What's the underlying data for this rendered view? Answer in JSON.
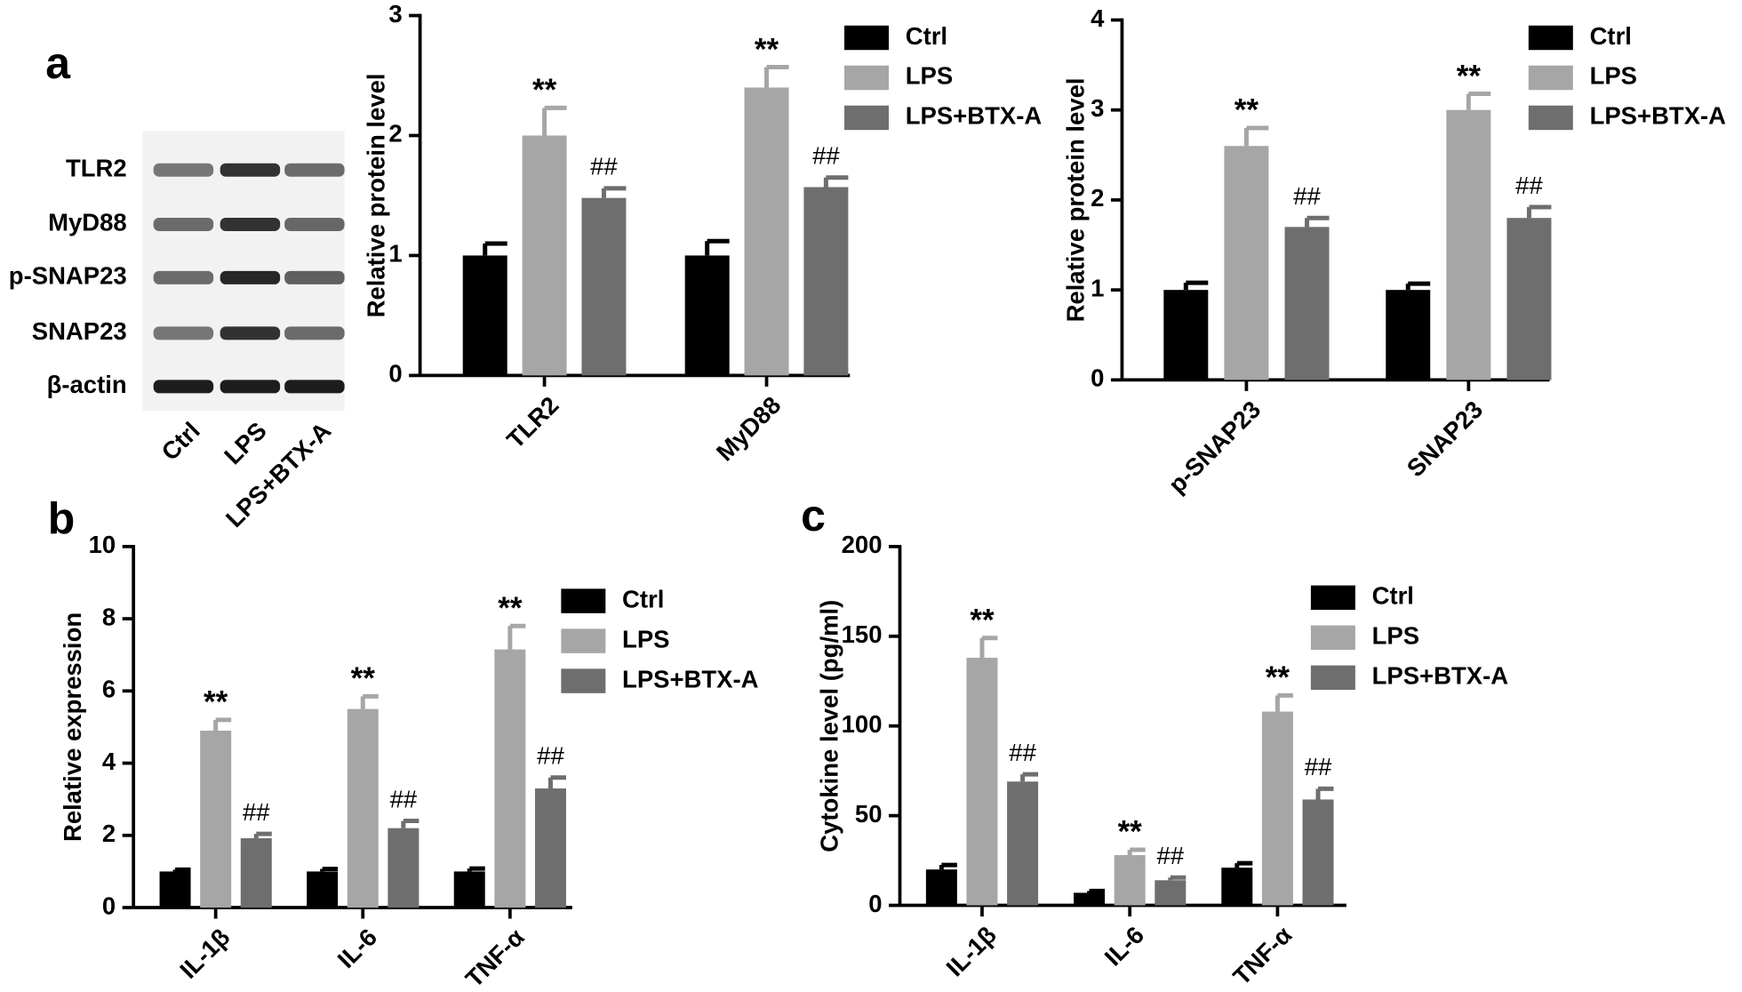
{
  "panel_labels": [
    "a",
    "b",
    "c"
  ],
  "blot": {
    "rows": [
      "TLR2",
      "MyD88",
      "p-SNAP23",
      "SNAP23",
      "β-actin"
    ],
    "lanes": [
      "Ctrl",
      "LPS",
      "LPS+BTX-A"
    ]
  },
  "chart_data": [
    {
      "type": "bar",
      "y_label": "Relative protein level",
      "categories": [
        "TLR2",
        "MyD88"
      ],
      "ylim": [
        0,
        3
      ],
      "yticks": [
        0,
        1,
        2,
        3
      ],
      "series": [
        {
          "name": "Ctrl",
          "color": "#000000",
          "values": [
            1.0,
            1.0
          ],
          "errors": [
            0.1,
            0.12
          ]
        },
        {
          "name": "LPS",
          "color": "#a6a6a6",
          "values": [
            2.0,
            2.4
          ],
          "errors": [
            0.23,
            0.17
          ],
          "annotations": [
            "**",
            "**"
          ]
        },
        {
          "name": "LPS+BTX-A",
          "color": "#6e6e6e",
          "values": [
            1.48,
            1.57
          ],
          "errors": [
            0.08,
            0.08
          ],
          "annotations": [
            "##",
            "##"
          ]
        }
      ]
    },
    {
      "type": "bar",
      "y_label": "Relative protein level",
      "categories": [
        "p-SNAP23",
        "SNAP23"
      ],
      "ylim": [
        0,
        4
      ],
      "yticks": [
        0,
        1,
        2,
        3,
        4
      ],
      "series": [
        {
          "name": "Ctrl",
          "color": "#000000",
          "values": [
            1.0,
            1.0
          ],
          "errors": [
            0.08,
            0.07
          ]
        },
        {
          "name": "LPS",
          "color": "#a6a6a6",
          "values": [
            2.6,
            3.0
          ],
          "errors": [
            0.2,
            0.18
          ],
          "annotations": [
            "**",
            "**"
          ]
        },
        {
          "name": "LPS+BTX-A",
          "color": "#6e6e6e",
          "values": [
            1.7,
            1.8
          ],
          "errors": [
            0.1,
            0.12
          ],
          "annotations": [
            "##",
            "##"
          ]
        }
      ]
    },
    {
      "type": "bar",
      "y_label": "Relative expression",
      "categories": [
        "IL-1β",
        "IL-6",
        "TNF-α"
      ],
      "ylim": [
        0,
        10
      ],
      "yticks": [
        0,
        2,
        4,
        6,
        8,
        10
      ],
      "series": [
        {
          "name": "Ctrl",
          "color": "#000000",
          "values": [
            1.0,
            1.0,
            1.0
          ],
          "errors": [
            0.05,
            0.07,
            0.08
          ]
        },
        {
          "name": "LPS",
          "color": "#a6a6a6",
          "values": [
            4.9,
            5.5,
            7.15
          ],
          "errors": [
            0.3,
            0.35,
            0.65
          ],
          "annotations": [
            "**",
            "**",
            "**"
          ]
        },
        {
          "name": "LPS+BTX-A",
          "color": "#6e6e6e",
          "values": [
            1.92,
            2.2,
            3.3
          ],
          "errors": [
            0.12,
            0.2,
            0.3
          ],
          "annotations": [
            "##",
            "##",
            "##"
          ]
        }
      ]
    },
    {
      "type": "bar",
      "y_label": "Cytokine level (pg/ml)",
      "categories": [
        "IL-1β",
        "IL-6",
        "TNF-α"
      ],
      "ylim": [
        0,
        200
      ],
      "yticks": [
        0,
        50,
        100,
        150,
        200
      ],
      "series": [
        {
          "name": "Ctrl",
          "color": "#000000",
          "values": [
            20,
            7,
            21
          ],
          "errors": [
            2.5,
            1,
            2.5
          ]
        },
        {
          "name": "LPS",
          "color": "#a6a6a6",
          "values": [
            138,
            28,
            108
          ],
          "errors": [
            11,
            3,
            9
          ],
          "annotations": [
            "**",
            "**",
            "**"
          ]
        },
        {
          "name": "LPS+BTX-A",
          "color": "#6e6e6e",
          "values": [
            69,
            14,
            59
          ],
          "errors": [
            4,
            1.5,
            6
          ],
          "annotations": [
            "##",
            "##",
            "##"
          ]
        }
      ]
    }
  ]
}
